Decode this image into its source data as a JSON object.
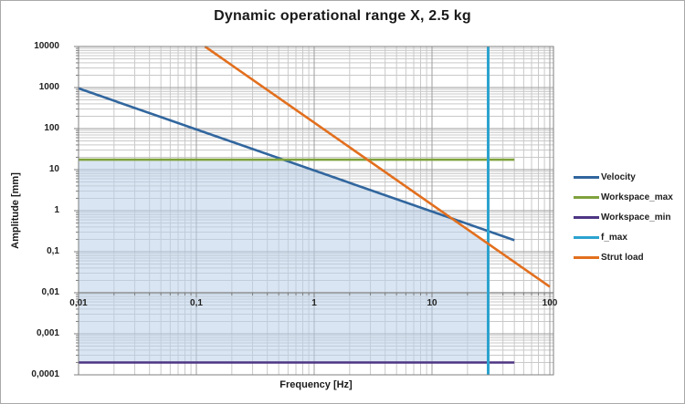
{
  "chart_data": {
    "type": "line",
    "title": "Dynamic operational range X, 2.5 kg",
    "xlabel": "Frequency [Hz]",
    "ylabel": "Amplitude [mm]",
    "x_scale": "log",
    "y_scale": "log",
    "xlim": [
      0.01,
      100
    ],
    "ylim": [
      0.0001,
      10000
    ],
    "x_ticks": {
      "values": [
        0.01,
        0.1,
        1,
        10,
        100
      ],
      "labels": [
        "0,01",
        "0,1",
        "1",
        "10",
        "100"
      ]
    },
    "y_ticks": {
      "values": [
        10000,
        1000,
        100,
        10,
        1,
        0.1,
        0.01,
        0.001,
        0.0001
      ],
      "labels": [
        "10000",
        "1000",
        "100",
        "10",
        "1",
        "0,1",
        "0,01",
        "0,001",
        "0,0001"
      ]
    },
    "grid": {
      "major": true,
      "minor": true
    },
    "legend_position": "right",
    "series": [
      {
        "name": "Velocity",
        "color": "#31669E",
        "points": [
          [
            0.01,
            955
          ],
          [
            50,
            0.191
          ]
        ],
        "model": "amplitude ~ 9.55/f (slope -1, max velocity limit)"
      },
      {
        "name": "Workspace_max",
        "color": "#7FA23C",
        "points": [
          [
            0.01,
            17.5
          ],
          [
            50,
            17.5
          ]
        ],
        "model": "constant 17.5 mm"
      },
      {
        "name": "Workspace_min",
        "color": "#4E3583",
        "points": [
          [
            0.01,
            0.0002
          ],
          [
            50,
            0.0002
          ]
        ],
        "model": "constant 0.0002 mm"
      },
      {
        "name": "f_max",
        "color": "#2BA3CF",
        "points": [
          [
            30,
            0.0001
          ],
          [
            30,
            10000
          ]
        ],
        "model": "vertical line at 30 Hz"
      },
      {
        "name": "Strut load",
        "color": "#E26F1E",
        "points": [
          [
            0.1183,
            10000
          ],
          [
            100,
            0.014
          ]
        ],
        "model": "amplitude ~ 140/f^2 (slope -2, max acceleration limit)"
      }
    ],
    "shaded_region": {
      "name": "operational range envelope",
      "fill": "#B9D0E8",
      "opacity": 0.55,
      "polygon": [
        [
          0.01,
          0.0002
        ],
        [
          0.01,
          17.5
        ],
        [
          0.546,
          17.5
        ],
        [
          14.66,
          0.651
        ],
        [
          30,
          0.156
        ],
        [
          30,
          0.0002
        ]
      ]
    },
    "colors": {
      "grid_major": "#9E9E9E",
      "grid_minor": "#C9C9C9",
      "plot_border": "#7F7F7F",
      "axis_line": "#7F7F7F",
      "text": "#1A1A1A",
      "background": "#FFFFFF",
      "canvas_border": "#A9A9A9"
    }
  }
}
